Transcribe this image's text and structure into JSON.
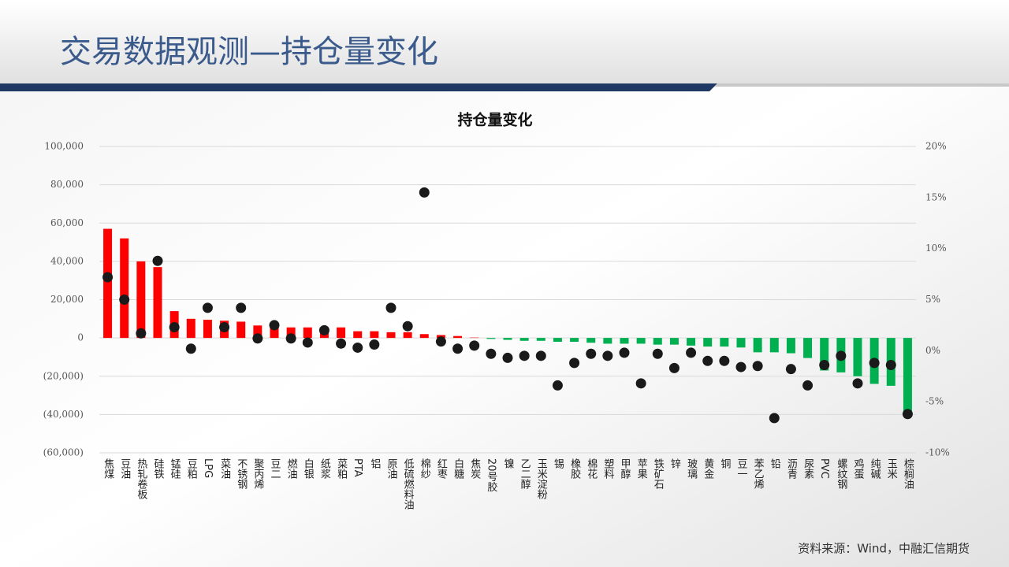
{
  "header": {
    "title": "交易数据观测—持仓量变化"
  },
  "source": "资料来源：Wind，中融汇信期货",
  "chart_data": {
    "type": "bar",
    "title": "持仓量变化",
    "categories": [
      "焦煤",
      "豆油",
      "热轧卷板",
      "硅铁",
      "锰硅",
      "豆粕",
      "LPG",
      "菜油",
      "不锈钢",
      "聚丙烯",
      "豆二",
      "燃油",
      "白银",
      "纸浆",
      "菜粕",
      "PTA",
      "铝",
      "原油",
      "低硫燃料油",
      "棉纱",
      "红枣",
      "白糖",
      "焦炭",
      "20号胶",
      "镍",
      "乙二醇",
      "玉米淀粉",
      "锡",
      "橡胶",
      "棉花",
      "塑料",
      "甲醇",
      "苹果",
      "铁矿石",
      "锌",
      "玻璃",
      "黄金",
      "铜",
      "豆一",
      "苯乙烯",
      "铅",
      "沥青",
      "尿素",
      "PVC",
      "螺纹钢",
      "鸡蛋",
      "纯碱",
      "玉米",
      "棕榈油"
    ],
    "series": [
      {
        "type": "bar",
        "color": "#ff0000",
        "negative_color": "#00b050",
        "values": [
          57000,
          52000,
          40000,
          37000,
          14000,
          10000,
          9500,
          9000,
          8500,
          6500,
          6500,
          5500,
          5500,
          5500,
          5500,
          3500,
          3500,
          3000,
          3000,
          2000,
          1500,
          1000,
          200,
          -500,
          -1000,
          -1500,
          -1500,
          -2000,
          -2000,
          -2500,
          -3000,
          -3000,
          -3000,
          -3500,
          -3500,
          -4000,
          -4500,
          -4500,
          -5000,
          -7500,
          -7500,
          -8000,
          -10500,
          -17000,
          -18000,
          -20000,
          -24000,
          -25000,
          -41000
        ]
      },
      {
        "type": "scatter",
        "axis": "y2",
        "color": "#1a1a1a",
        "values": [
          7.2,
          5.0,
          1.7,
          8.8,
          2.3,
          0.2,
          4.2,
          2.3,
          4.2,
          1.2,
          2.5,
          1.2,
          0.8,
          2.0,
          0.7,
          0.3,
          0.6,
          4.2,
          2.4,
          15.5,
          0.9,
          0.2,
          0.5,
          -0.3,
          -0.7,
          -0.5,
          -0.5,
          -3.4,
          -1.2,
          -0.3,
          -0.5,
          -0.2,
          -3.2,
          -0.3,
          -1.7,
          -0.2,
          -1.0,
          -1.0,
          -1.6,
          -1.5,
          -6.6,
          -1.8,
          -3.4,
          -1.4,
          -0.5,
          -3.2,
          -1.2,
          -1.4,
          -6.2
        ]
      }
    ],
    "ylim": [
      -60000,
      100000
    ],
    "yticks": [
      {
        "value": -60000,
        "label": "(60,000)"
      },
      {
        "value": -40000,
        "label": "(40,000)"
      },
      {
        "value": -20000,
        "label": "(20,000)"
      },
      0,
      {
        "value": 20000,
        "label": "20,000"
      },
      {
        "value": 40000,
        "label": "40,000"
      },
      {
        "value": 60000,
        "label": "60,000"
      },
      {
        "value": 80000,
        "label": "80,000"
      },
      {
        "value": 100000,
        "label": "100,000"
      }
    ],
    "negative_tick_color": "#c00000",
    "y2lim": [
      -10,
      20
    ],
    "y2ticks": [
      {
        "value": -10,
        "label": "-10%"
      },
      {
        "value": -5,
        "label": "-5%"
      },
      {
        "value": 0,
        "label": "0%"
      },
      {
        "value": 5,
        "label": "5%"
      },
      {
        "value": 10,
        "label": "10%"
      },
      {
        "value": 15,
        "label": "15%"
      },
      {
        "value": 20,
        "label": "20%"
      }
    ],
    "grid": true
  }
}
